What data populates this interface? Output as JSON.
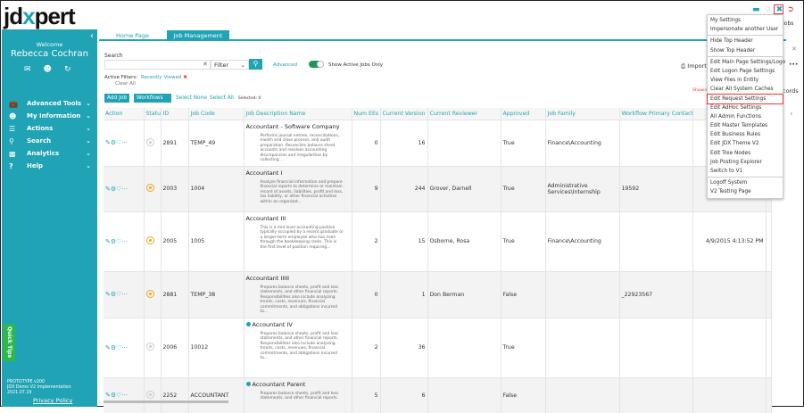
{
  "logo": "jdxpert",
  "colors": {
    "accent": "#1fa3b5",
    "toggle_on": "#1f9a56",
    "pending": "#f5a623",
    "highlight": "#e33333"
  },
  "sidebar": {
    "welcome": "Welcome",
    "user": "Rebecca Cochran",
    "items": [
      {
        "label": "Advanced Tools",
        "icon": "briefcase-icon"
      },
      {
        "label": "My Information",
        "icon": "user-circle-icon"
      },
      {
        "label": "Actions",
        "icon": "checklist-icon"
      },
      {
        "label": "Search",
        "icon": "search-icon"
      },
      {
        "label": "Analytics",
        "icon": "chart-icon"
      },
      {
        "label": "Help",
        "icon": "help-icon"
      }
    ],
    "quick_tips": "Quick Tips",
    "version": [
      "PROTOTYPE v200",
      "JDX Demo V2 Implementation",
      "2021.07.19"
    ],
    "privacy": "Privacy Policy"
  },
  "tabs": [
    "Home Page",
    "Job Management"
  ],
  "header": {
    "jobs": "Jobs"
  },
  "search": {
    "label": "Search",
    "value": "",
    "filter": "Filter",
    "advanced": "Advanced",
    "toggle_label": "Show Active Jobs Only",
    "toggle_on": true,
    "active_filters": "Active Filters:",
    "recently_viewed": "Recently Viewed",
    "clear_all": "Clear All"
  },
  "toolbar": {
    "add_job": "Add Job",
    "workflows": "Workflows",
    "select_none": "Select None",
    "select_all": "Select All",
    "selected": "Selected: 0",
    "import": "Import",
    "showing": "Showing",
    "records": "cords"
  },
  "table": {
    "headers": [
      "Action",
      "Status",
      "ID",
      "Job Code",
      "Job Description Name",
      "Num EEs",
      "Current Version",
      "Current Reviewer",
      "Approved",
      "Job Family",
      "Workflow Primary Contact",
      "",
      ""
    ],
    "rows": [
      {
        "status": "inactive",
        "id": "2891",
        "code": "TEMP_49",
        "name": "Accountant - Software Company",
        "desc": "Performs journal entries, reconciliations, month end close process, and audit preparation. Reconciles balance sheet accounts and resolves accounting discrepancies and irregularities by collecting ...",
        "ees": "0",
        "ver": "16",
        "reviewer": "",
        "approved": "True",
        "family": "Finance\\Accounting",
        "contact": "",
        "extra": "",
        "dot": false
      },
      {
        "status": "pending",
        "id": "2003",
        "code": "1004",
        "name": "Accountant I",
        "desc": "Analyze financial information and prepare financial reports to determine or maintain record of assets, liabilities, profit and loss, tax liability, or other financial activities within an organizat...",
        "ees": "9",
        "ver": "244",
        "reviewer": "Grover, Darnell",
        "approved": "True",
        "family": "Administrative Services\\Internship",
        "contact": "19592",
        "extra": "",
        "dot": false
      },
      {
        "status": "pending",
        "id": "2005",
        "code": "1005",
        "name": "Accountant III",
        "desc": "This is a mid level accounting position typically occupied by a recent graduate or a longer-term employee who has risen through the bookkeeping ranks.  This is the first level of position requiring...",
        "ees": "2",
        "ver": "15",
        "reviewer": "Osborne, Rosa",
        "approved": "True",
        "family": "Finance\\Accounting",
        "contact": "",
        "extra": "4/9/2015 4:13:52 PM",
        "dot": false
      },
      {
        "status": "pending",
        "id": "2881",
        "code": "TEMP_38",
        "name": "Accountant IIIII",
        "desc": "Prepares balance sheets, profit and loss statements, and other financial reports. Responsibilities also include analyzing trends, costs, revenues, financial commitments, and obligations incurred to...",
        "ees": "0",
        "ver": "1",
        "reviewer": "Don  Berman",
        "approved": "False",
        "family": "",
        "contact": "_22923567",
        "extra": "",
        "dot": false
      },
      {
        "status": "inactive",
        "id": "2006",
        "code": "10012",
        "name": "Accountant IV",
        "desc": "Prepares balance sheets, profit and loss statements, and other financial reports. Responsibilities also include analyzing trends, costs, revenues, financial commitments, and obligations incurred to...",
        "ees": "2",
        "ver": "36",
        "reviewer": "",
        "approved": "True",
        "family": "",
        "contact": "",
        "extra": "",
        "dot": true
      },
      {
        "status": "inactive",
        "id": "2252",
        "code": "ACCOUNTANT",
        "name": "Accountant Parent",
        "desc": "Prepares balance sheets, profit and loss statements, and other financial reports.",
        "ees": "5",
        "ver": "6",
        "reviewer": "",
        "approved": "False",
        "family": "",
        "contact": "",
        "extra": "",
        "dot": true
      }
    ]
  },
  "menu": {
    "groups": [
      [
        "My Settings",
        "Impersonate another User"
      ],
      [
        "Hide Top Header",
        "Show Top Header"
      ],
      [
        "Edit Main Page Settings/Logo",
        "Edit Logon Page Settings",
        "View Files in Entity",
        "Clear All System Caches",
        "Edit Request Settings",
        "Edit AdHoc Settings",
        "All Admin Functions",
        "Edit Master Templates",
        "Edit Business Rules",
        "Edit JDX Theme V2",
        "Edit Tree Nodes",
        "Job Posting Explorer",
        "Switch to V1"
      ],
      [
        "Logoff System",
        "V2 Testing Page"
      ]
    ],
    "highlighted": "Edit Request Settings"
  }
}
